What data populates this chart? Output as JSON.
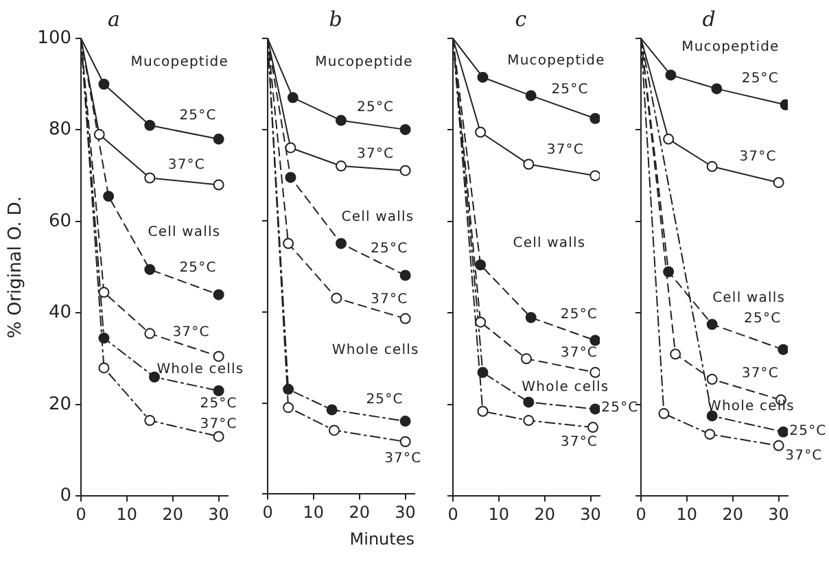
{
  "chart_data": [
    {
      "type": "line",
      "title": "a",
      "ylabel": "% Original O. D.",
      "xlim": [
        0,
        32
      ],
      "xticks": [
        0,
        10,
        20,
        30
      ],
      "ylim": [
        0,
        100
      ],
      "yticks": [
        0,
        20,
        40,
        60,
        80,
        100
      ],
      "grid": false,
      "marker": "circle",
      "series": [
        {
          "color": "#222222",
          "line_style": "solid",
          "x": [
            0,
            5,
            15,
            30
          ],
          "values": [
            100,
            90,
            81,
            78
          ]
        },
        {
          "color": "#222222",
          "line_style": "solid",
          "x": [
            0,
            4,
            15,
            30
          ],
          "values": [
            100,
            79,
            69.5,
            68
          ]
        },
        {
          "color": "#222222",
          "line_style": "dashed",
          "x": [
            0,
            6,
            15,
            30
          ],
          "values": [
            100,
            65.5,
            49.5,
            44
          ]
        },
        {
          "color": "#222222",
          "line_style": "dashed",
          "x": [
            0,
            5,
            15,
            30
          ],
          "values": [
            100,
            44.5,
            35.5,
            30.5
          ]
        },
        {
          "color": "#222222",
          "line_style": "dotted",
          "x": [
            0,
            5,
            16,
            30
          ],
          "values": [
            100,
            34.5,
            26,
            23
          ]
        },
        {
          "color": "#222222",
          "line_style": "dotted",
          "x": [
            0,
            5,
            15,
            30
          ],
          "values": [
            100,
            28,
            16.5,
            13
          ]
        }
      ],
      "annotations": [
        "Mucopeptide",
        "25°C",
        "37°C",
        "Cell walls",
        "25°C",
        "37°C",
        "Whole cells",
        "25°C",
        "37°C"
      ]
    },
    {
      "type": "line",
      "title": "b",
      "xlabel": "Minutes",
      "xlim": [
        0,
        32
      ],
      "xticks": [
        0,
        10,
        20,
        30
      ],
      "ylim": [
        0,
        100
      ],
      "yticks": [
        0,
        20,
        40,
        60,
        80,
        100
      ],
      "tick_labels": "x",
      "grid": false,
      "marker": "circle",
      "series": [
        {
          "color": "#222222",
          "line_style": "solid",
          "x": [
            0,
            5.5,
            16,
            30
          ],
          "values": [
            100,
            87,
            82,
            80
          ]
        },
        {
          "color": "#222222",
          "line_style": "solid",
          "x": [
            0,
            5,
            16,
            30
          ],
          "values": [
            100,
            76,
            72,
            71
          ]
        },
        {
          "color": "#222222",
          "line_style": "dashed",
          "x": [
            0,
            5,
            16,
            30
          ],
          "values": [
            100,
            69.5,
            55,
            48
          ]
        },
        {
          "color": "#222222",
          "line_style": "dashed",
          "x": [
            0,
            4.5,
            15,
            30
          ],
          "values": [
            100,
            55,
            43,
            38.5
          ]
        },
        {
          "color": "#222222",
          "line_style": "dotted",
          "x": [
            0,
            4.5,
            14,
            30
          ],
          "values": [
            100,
            23,
            18.5,
            16
          ]
        },
        {
          "color": "#222222",
          "line_style": "dotted",
          "x": [
            0,
            4.5,
            14.5,
            30
          ],
          "values": [
            100,
            19,
            14,
            11.5
          ]
        }
      ],
      "annotations": [
        "Mucopeptide",
        "25°C",
        "37°C",
        "Cell walls",
        "25°C",
        "37°C",
        "Whole cells",
        "25°C",
        "37°C"
      ]
    },
    {
      "type": "line",
      "title": "c",
      "xlim": [
        0,
        32
      ],
      "xticks": [
        0,
        10,
        20,
        30
      ],
      "ylim": [
        0,
        100
      ],
      "yticks": [
        0,
        20,
        40,
        60,
        80,
        100
      ],
      "tick_labels": "x",
      "grid": false,
      "marker": "circle",
      "series": [
        {
          "color": "#222222",
          "line_style": "solid",
          "x": [
            0,
            6.5,
            17,
            31
          ],
          "values": [
            100,
            91.5,
            87.5,
            82.5
          ]
        },
        {
          "color": "#222222",
          "line_style": "solid",
          "x": [
            0,
            6,
            16.5,
            31
          ],
          "values": [
            100,
            79.5,
            72.5,
            70
          ]
        },
        {
          "color": "#222222",
          "line_style": "dashed",
          "x": [
            0,
            6,
            17,
            31
          ],
          "values": [
            100,
            50.5,
            39,
            34
          ]
        },
        {
          "color": "#222222",
          "line_style": "dashed",
          "x": [
            0,
            6,
            16,
            31
          ],
          "values": [
            100,
            38,
            30,
            27
          ]
        },
        {
          "color": "#222222",
          "line_style": "dotted",
          "x": [
            0,
            6.5,
            16.5,
            31
          ],
          "values": [
            100,
            27,
            20.5,
            19
          ]
        },
        {
          "color": "#222222",
          "line_style": "dotted",
          "x": [
            0,
            6.5,
            16.5,
            30.5
          ],
          "values": [
            100,
            18.5,
            16.5,
            15
          ]
        }
      ],
      "annotations": [
        "Mucopeptide",
        "25°C",
        "37°C",
        "Cell walls",
        "25°C",
        "37°C",
        "Whole cells",
        "25°C",
        "37°C"
      ]
    },
    {
      "type": "line",
      "title": "d",
      "xlim": [
        0,
        32
      ],
      "xticks": [
        0,
        10,
        20,
        30
      ],
      "ylim": [
        0,
        100
      ],
      "yticks": [
        0,
        20,
        40,
        60,
        80,
        100
      ],
      "tick_labels": "x",
      "grid": false,
      "marker": "circle",
      "series": [
        {
          "color": "#222222",
          "line_style": "solid",
          "x": [
            0,
            6.5,
            16.5,
            31.5
          ],
          "values": [
            100,
            92,
            89,
            85.5
          ]
        },
        {
          "color": "#222222",
          "line_style": "solid",
          "x": [
            0,
            6,
            15.5,
            30
          ],
          "values": [
            100,
            78,
            72,
            68.5
          ]
        },
        {
          "color": "#222222",
          "line_style": "dashed",
          "x": [
            0,
            6,
            15.5,
            31
          ],
          "values": [
            100,
            49,
            37.5,
            32
          ]
        },
        {
          "color": "#222222",
          "line_style": "dashed",
          "x": [
            0,
            7.5,
            15.5,
            30.5
          ],
          "values": [
            100,
            31,
            25.5,
            21
          ]
        },
        {
          "color": "#222222",
          "line_style": "dotted",
          "x": [
            0,
            15.5,
            31
          ],
          "values": [
            100,
            17.5,
            14
          ]
        },
        {
          "color": "#222222",
          "line_style": "dotted",
          "x": [
            0,
            5,
            15,
            30
          ],
          "values": [
            100,
            18,
            13.5,
            11
          ]
        }
      ],
      "annotations": [
        "Mucopeptide",
        "25°C",
        "37°C",
        "Cell walls",
        "25°C",
        "37°C",
        "Whole cells",
        "25°C",
        "37°C"
      ]
    }
  ]
}
